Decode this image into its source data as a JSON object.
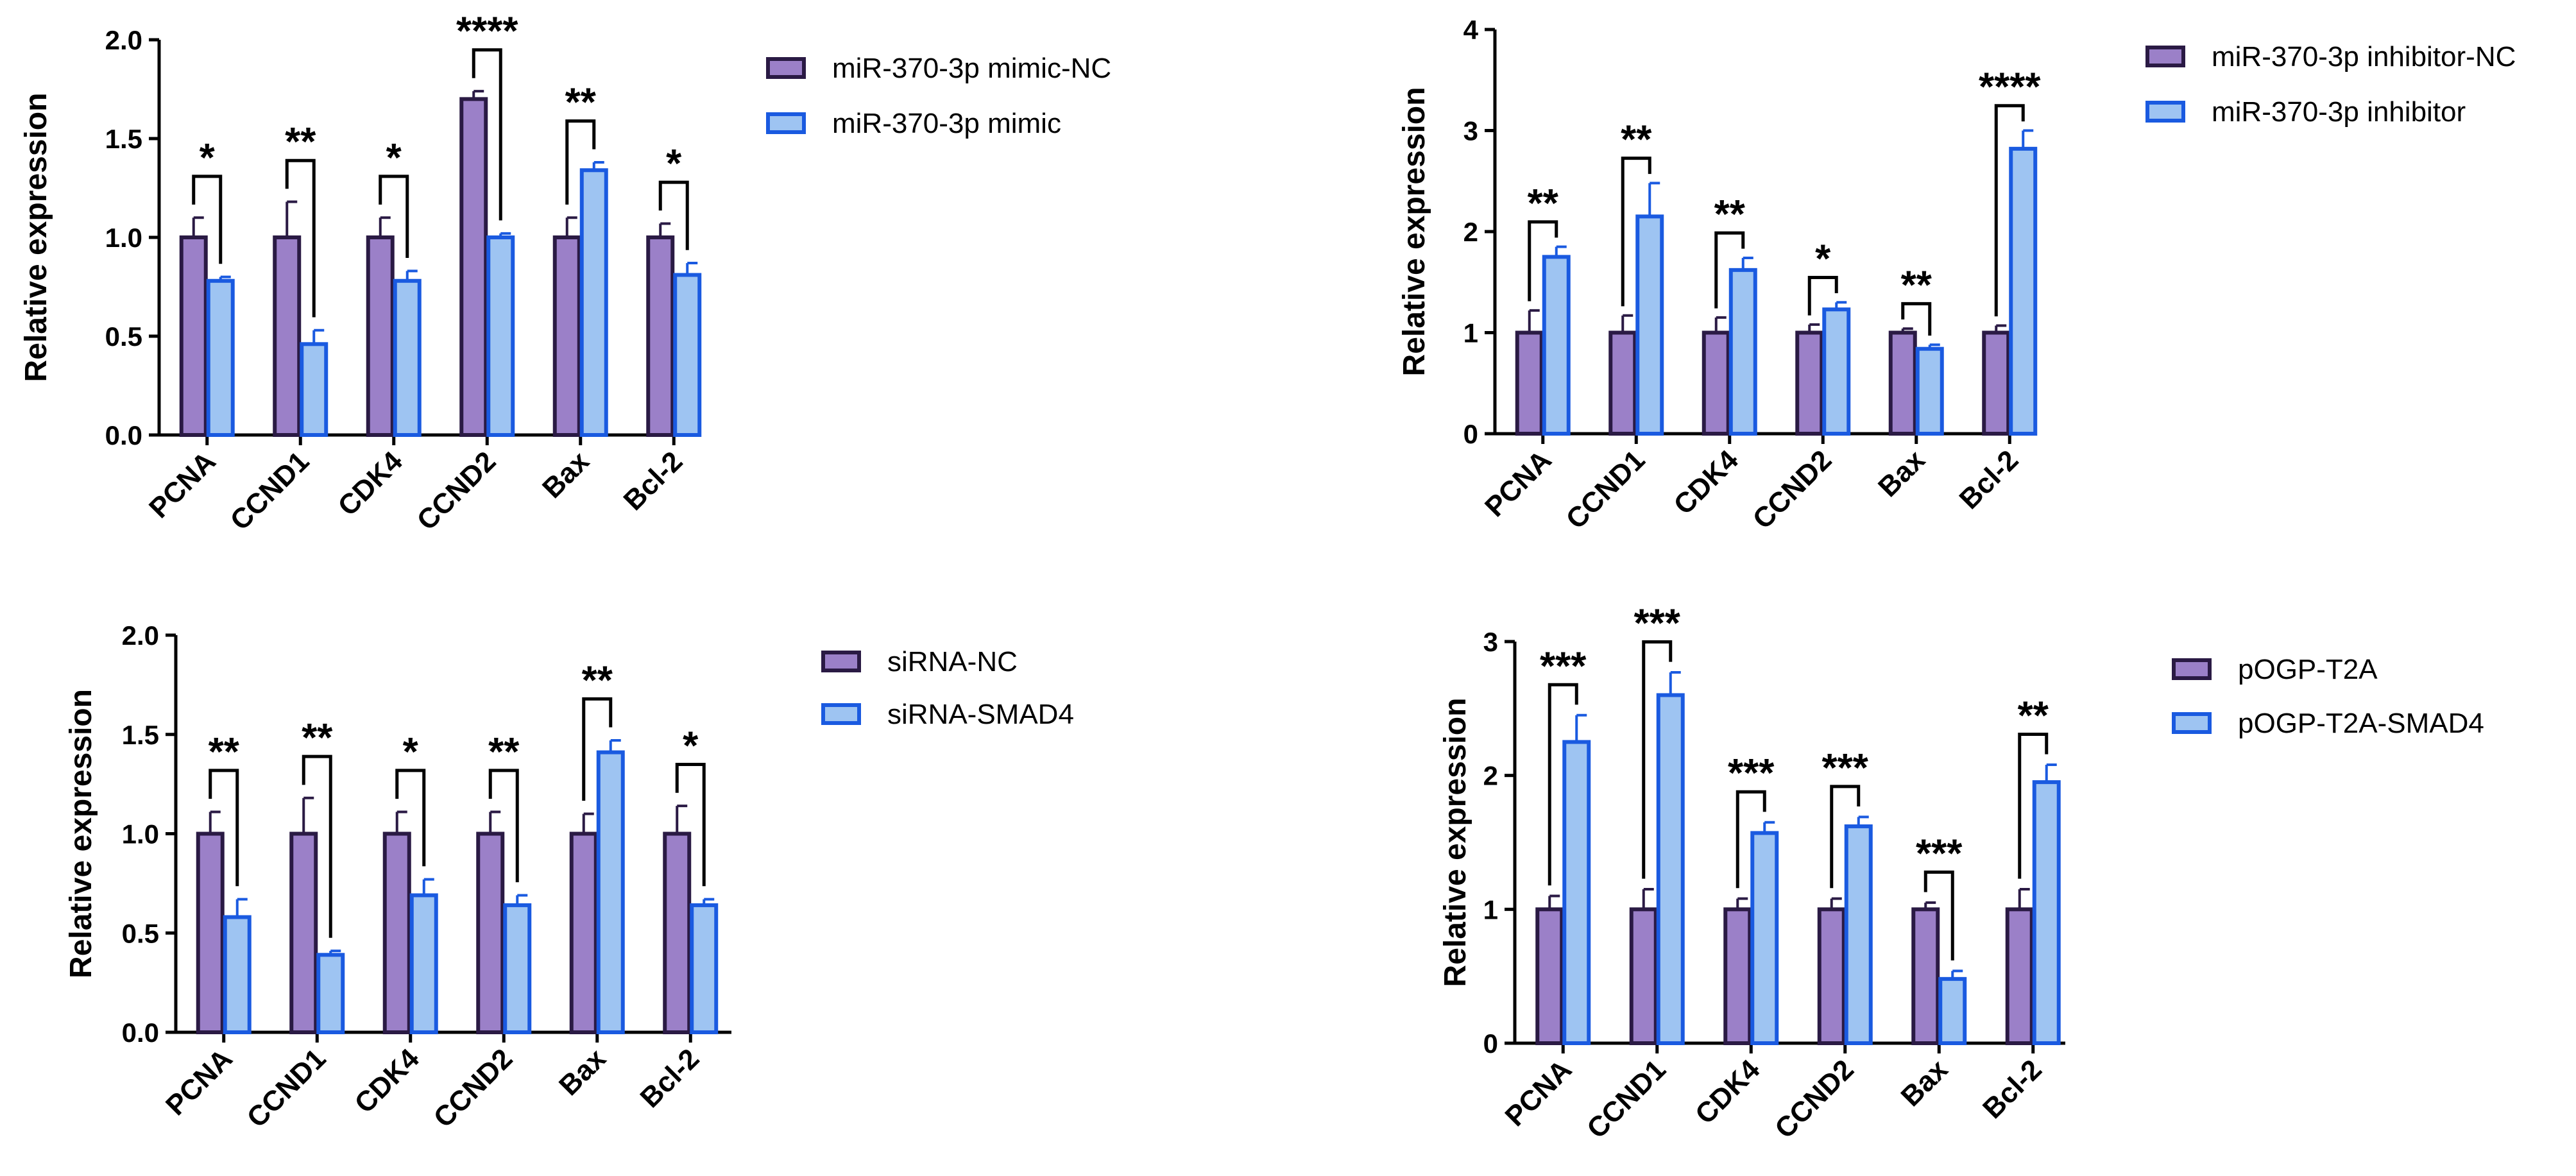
{
  "colors": {
    "nc_fill": "#9b80c8",
    "nc_stroke": "#2a1a44",
    "treat_fill": "#9ec4f2",
    "treat_stroke": "#1a5ae0",
    "ink": "#000000"
  },
  "chart_data": [
    {
      "type": "bar",
      "ylabel": "Relative expression",
      "ylim": [
        0,
        2.0
      ],
      "yticks": [
        "0.0",
        "0.5",
        "1.0",
        "1.5",
        "2.0"
      ],
      "categories": [
        "PCNA",
        "CCND1",
        "CDK4",
        "CCND2",
        "Bax",
        "Bcl-2"
      ],
      "series": [
        {
          "name": "miR-370-3p mimic-NC",
          "values": [
            1.0,
            1.0,
            1.0,
            1.7,
            1.0,
            1.0
          ],
          "errors": [
            0.1,
            0.18,
            0.1,
            0.04,
            0.1,
            0.07
          ]
        },
        {
          "name": "miR-370-3p mimic",
          "values": [
            0.78,
            0.46,
            0.78,
            1.0,
            1.34,
            0.81
          ],
          "errors": [
            0.02,
            0.07,
            0.05,
            0.02,
            0.04,
            0.06
          ]
        }
      ],
      "significance": [
        "*",
        "**",
        "*",
        "****",
        "**",
        "*"
      ]
    },
    {
      "type": "bar",
      "ylabel": "Relative expression",
      "ylim": [
        0,
        4
      ],
      "yticks": [
        "0",
        "1",
        "2",
        "3",
        "4"
      ],
      "categories": [
        "PCNA",
        "CCND1",
        "CDK4",
        "CCND2",
        "Bax",
        "Bcl-2"
      ],
      "series": [
        {
          "name": "miR-370-3p inhibitor-NC",
          "values": [
            1.0,
            1.0,
            1.0,
            1.0,
            1.0,
            1.0
          ],
          "errors": [
            0.22,
            0.17,
            0.15,
            0.08,
            0.04,
            0.07
          ]
        },
        {
          "name": "miR-370-3p inhibitor",
          "values": [
            1.75,
            2.15,
            1.62,
            1.23,
            0.84,
            2.82
          ],
          "errors": [
            0.1,
            0.33,
            0.12,
            0.07,
            0.04,
            0.18
          ]
        }
      ],
      "significance": [
        "**",
        "**",
        "**",
        "*",
        "**",
        "****"
      ]
    },
    {
      "type": "bar",
      "ylabel": "Relative expression",
      "ylim": [
        0,
        2.0
      ],
      "yticks": [
        "0.0",
        "0.5",
        "1.0",
        "1.5",
        "2.0"
      ],
      "categories": [
        "PCNA",
        "CCND1",
        "CDK4",
        "CCND2",
        "Bax",
        "Bcl-2"
      ],
      "series": [
        {
          "name": "siRNA-NC",
          "values": [
            1.0,
            1.0,
            1.0,
            1.0,
            1.0,
            1.0
          ],
          "errors": [
            0.11,
            0.18,
            0.11,
            0.11,
            0.1,
            0.14
          ]
        },
        {
          "name": "siRNA-SMAD4",
          "values": [
            0.58,
            0.39,
            0.69,
            0.64,
            1.41,
            0.64
          ],
          "errors": [
            0.09,
            0.02,
            0.08,
            0.05,
            0.06,
            0.03
          ]
        }
      ],
      "significance": [
        "**",
        "**",
        "*",
        "**",
        "**",
        "*"
      ]
    },
    {
      "type": "bar",
      "ylabel": "Relative expression",
      "ylim": [
        0,
        3
      ],
      "yticks": [
        "0",
        "1",
        "2",
        "3"
      ],
      "categories": [
        "PCNA",
        "CCND1",
        "CDK4",
        "CCND2",
        "Bax",
        "Bcl-2"
      ],
      "series": [
        {
          "name": "pOGP-T2A",
          "values": [
            1.0,
            1.0,
            1.0,
            1.0,
            1.0,
            1.0
          ],
          "errors": [
            0.1,
            0.15,
            0.08,
            0.08,
            0.05,
            0.15
          ]
        },
        {
          "name": "pOGP-T2A-SMAD4",
          "values": [
            2.25,
            2.6,
            1.57,
            1.62,
            0.48,
            1.95
          ],
          "errors": [
            0.2,
            0.17,
            0.08,
            0.07,
            0.06,
            0.13
          ]
        }
      ],
      "significance": [
        "***",
        "***",
        "***",
        "***",
        "***",
        "**"
      ]
    }
  ]
}
